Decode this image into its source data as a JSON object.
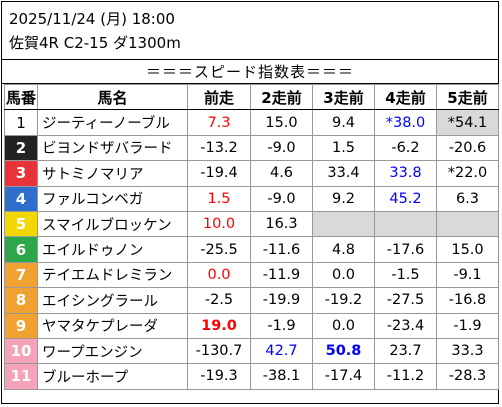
{
  "header": {
    "line1": "2025/11/24 (月) 18:00",
    "line2": "佐賀4R C2-15 ダ1300m"
  },
  "title": "＝＝＝スピード指数表＝＝＝",
  "columns": [
    "馬番",
    "馬名",
    "前走",
    "2走前",
    "3走前",
    "4走前",
    "5走前"
  ],
  "colors": {
    "red": "#ff0000",
    "blue": "#0000ff",
    "highlight": "#d9d9d9"
  },
  "rows": [
    {
      "num": "1",
      "bg": "#ffffff",
      "fg": "#000000",
      "name": "ジーティーノーブル",
      "vals": [
        {
          "t": "7.3",
          "c": "red"
        },
        {
          "t": "15.0"
        },
        {
          "t": "9.4"
        },
        {
          "t": "*38.0",
          "c": "blue"
        },
        {
          "t": "*54.1",
          "hl": true
        }
      ]
    },
    {
      "num": "2",
      "bg": "#222222",
      "fg": "#ffffff",
      "name": "ビヨンドザバラード",
      "vals": [
        {
          "t": "-13.2"
        },
        {
          "t": "-9.0"
        },
        {
          "t": "1.5"
        },
        {
          "t": "-6.2"
        },
        {
          "t": "-20.6"
        }
      ]
    },
    {
      "num": "3",
      "bg": "#e8333a",
      "fg": "#ffffff",
      "name": "サトミノマリア",
      "vals": [
        {
          "t": "-19.4"
        },
        {
          "t": "4.6"
        },
        {
          "t": "33.4"
        },
        {
          "t": "33.8",
          "c": "blue"
        },
        {
          "t": "*22.0"
        }
      ]
    },
    {
      "num": "4",
      "bg": "#2f6ecb",
      "fg": "#ffffff",
      "name": "ファルコンベガ",
      "vals": [
        {
          "t": "1.5",
          "c": "red"
        },
        {
          "t": "-9.0"
        },
        {
          "t": "9.2"
        },
        {
          "t": "45.2",
          "c": "blue"
        },
        {
          "t": "6.3"
        }
      ]
    },
    {
      "num": "5",
      "bg": "#f2d700",
      "fg": "#ffffff",
      "name": "スマイルブロッケン",
      "vals": [
        {
          "t": "10.0",
          "c": "red"
        },
        {
          "t": "16.3"
        },
        {
          "t": "",
          "empty": true
        },
        {
          "t": "",
          "empty": true
        },
        {
          "t": "",
          "empty": true
        }
      ]
    },
    {
      "num": "6",
      "bg": "#2ea64a",
      "fg": "#ffffff",
      "name": "エイルドゥノン",
      "vals": [
        {
          "t": "-25.5"
        },
        {
          "t": "-11.6"
        },
        {
          "t": "4.8"
        },
        {
          "t": "-17.6"
        },
        {
          "t": "15.0"
        }
      ]
    },
    {
      "num": "7",
      "bg": "#f0a230",
      "fg": "#ffffff",
      "name": "テイエムドレミラン",
      "vals": [
        {
          "t": "0.0",
          "c": "red"
        },
        {
          "t": "-11.9"
        },
        {
          "t": "0.0"
        },
        {
          "t": "-1.5"
        },
        {
          "t": "-9.1"
        }
      ]
    },
    {
      "num": "8",
      "bg": "#f0a230",
      "fg": "#ffffff",
      "name": "エイシングラール",
      "vals": [
        {
          "t": "-2.5"
        },
        {
          "t": "-19.9"
        },
        {
          "t": "-19.2"
        },
        {
          "t": "-27.5"
        },
        {
          "t": "-16.8"
        }
      ]
    },
    {
      "num": "9",
      "bg": "#f0a230",
      "fg": "#ffffff",
      "name": "ヤマタケプレーダ",
      "vals": [
        {
          "t": "19.0",
          "c": "red",
          "b": true
        },
        {
          "t": "-1.9"
        },
        {
          "t": "0.0"
        },
        {
          "t": "-23.4"
        },
        {
          "t": "-1.9"
        }
      ]
    },
    {
      "num": "10",
      "bg": "#f4a3b8",
      "fg": "#ffffff",
      "name": "ワープエンジン",
      "vals": [
        {
          "t": "-130.7"
        },
        {
          "t": "42.7",
          "c": "blue"
        },
        {
          "t": "50.8",
          "c": "blue",
          "b": true
        },
        {
          "t": "23.7"
        },
        {
          "t": "33.3"
        }
      ]
    },
    {
      "num": "11",
      "bg": "#f4a3b8",
      "fg": "#ffffff",
      "name": "ブルーホープ",
      "vals": [
        {
          "t": "-19.3"
        },
        {
          "t": "-38.1"
        },
        {
          "t": "-17.4"
        },
        {
          "t": "-11.2"
        },
        {
          "t": "-28.3"
        }
      ]
    }
  ]
}
